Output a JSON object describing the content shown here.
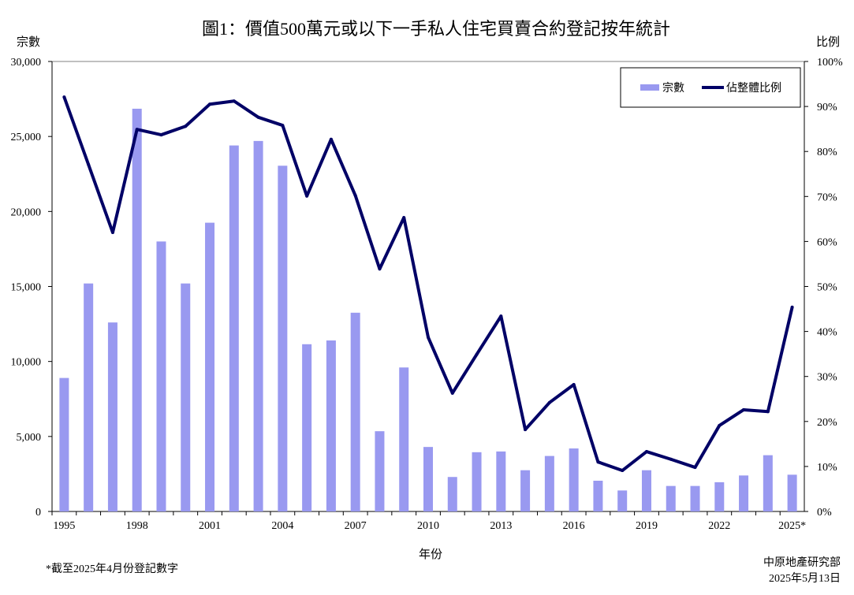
{
  "chart_data": {
    "type": "bar+line",
    "title": "圖1：價值500萬元或以下一手私人住宅買賣合約登記按年統計",
    "xlabel": "年份",
    "ylabel_left": "宗數",
    "ylabel_right": "比例",
    "ylim_left": [
      0,
      30000
    ],
    "ylim_right": [
      0,
      100
    ],
    "yticks_left": [
      "0",
      "5,000",
      "10,000",
      "15,000",
      "20,000",
      "25,000",
      "30,000"
    ],
    "yticks_right": [
      "0%",
      "10%",
      "20%",
      "30%",
      "40%",
      "50%",
      "60%",
      "70%",
      "80%",
      "90%",
      "100%"
    ],
    "xtick_labels": [
      "1995",
      "1998",
      "2001",
      "2004",
      "2007",
      "2010",
      "2013",
      "2016",
      "2019",
      "2022",
      "2025*"
    ],
    "legend_placement": "top-right",
    "grid": false,
    "categories": [
      1995,
      1996,
      1997,
      1998,
      1999,
      2000,
      2001,
      2002,
      2003,
      2004,
      2005,
      2006,
      2007,
      2008,
      2009,
      2010,
      2011,
      2012,
      2013,
      2014,
      2015,
      2016,
      2017,
      2018,
      2019,
      2020,
      2021,
      2022,
      2023,
      2024,
      2025
    ],
    "series": [
      {
        "name": "宗數",
        "type": "bar",
        "axis": "left",
        "color": "#9999f0",
        "values": [
          8900,
          15200,
          12600,
          26850,
          18000,
          15200,
          19250,
          24400,
          24700,
          23050,
          11150,
          11400,
          13250,
          5350,
          9600,
          4300,
          2300,
          3950,
          4000,
          2750,
          3700,
          4200,
          2050,
          1400,
          2750,
          1700,
          1700,
          1950,
          2400,
          3750,
          2450
        ]
      },
      {
        "name": "佔整體比例",
        "type": "line",
        "axis": "right",
        "unit": "%",
        "color": "#000066",
        "values": [
          92.1,
          77.1,
          62.0,
          84.9,
          83.7,
          85.6,
          90.5,
          91.2,
          87.6,
          85.8,
          70.1,
          82.7,
          70.2,
          53.9,
          65.3,
          38.7,
          26.3,
          34.9,
          43.4,
          18.2,
          24.2,
          28.2,
          11.0,
          9.1,
          13.3,
          11.6,
          9.8,
          19.1,
          22.6,
          22.2,
          45.4
        ]
      }
    ],
    "footnote": "*截至2025年4月份登記數字",
    "source": "中原地產研究部",
    "date": "2025年5月13日"
  }
}
